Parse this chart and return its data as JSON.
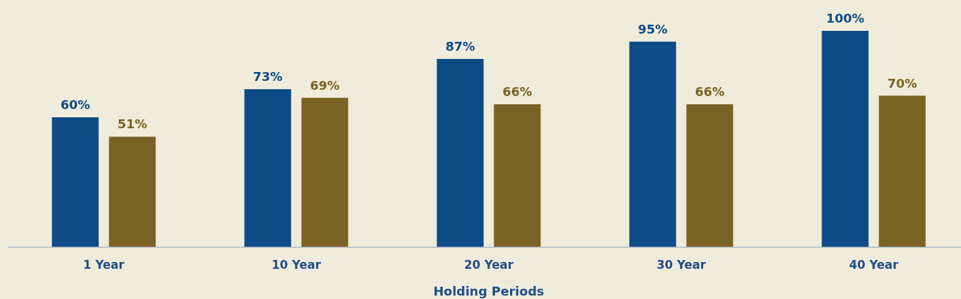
{
  "chart_data": {
    "type": "bar",
    "xlabel": "Holding Periods",
    "categories": [
      "1 Year",
      "10 Year",
      "20 Year",
      "30 Year",
      "40 Year"
    ],
    "series": [
      {
        "color": "#0d4a86",
        "values": [
          60,
          73,
          87,
          95,
          100
        ],
        "value_labels": [
          "60%",
          "73%",
          "87%",
          "95%",
          "100%"
        ]
      },
      {
        "color": "#7a6224",
        "values": [
          51,
          69,
          66,
          66,
          70
        ],
        "value_labels": [
          "51%",
          "69%",
          "66%",
          "66%",
          "70%"
        ]
      }
    ],
    "tick_labels": "x"
  }
}
